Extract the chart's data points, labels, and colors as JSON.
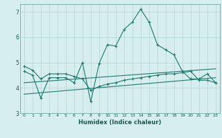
{
  "xlabel": "Humidex (Indice chaleur)",
  "background_color": "#d6eeee",
  "grid_color": "#b8d8d8",
  "line_color": "#1a7a6e",
  "xlim": [
    -0.5,
    23.5
  ],
  "ylim": [
    3.0,
    7.3
  ],
  "yticks": [
    3,
    4,
    5,
    6,
    7
  ],
  "xticks": [
    0,
    1,
    2,
    3,
    4,
    5,
    6,
    7,
    8,
    9,
    10,
    11,
    12,
    13,
    14,
    15,
    16,
    17,
    18,
    19,
    20,
    21,
    22,
    23
  ],
  "series1_x": [
    0,
    1,
    2,
    3,
    4,
    5,
    6,
    7,
    8,
    9,
    10,
    11,
    12,
    13,
    14,
    15,
    16,
    17,
    18,
    19,
    20,
    21,
    22,
    23
  ],
  "series1_y": [
    4.65,
    4.5,
    3.6,
    4.4,
    4.4,
    4.4,
    4.2,
    5.0,
    3.45,
    4.95,
    5.7,
    5.65,
    6.3,
    6.6,
    7.1,
    6.6,
    5.7,
    5.5,
    5.3,
    4.65,
    4.35,
    4.35,
    4.55,
    4.2
  ],
  "series2_x": [
    0,
    1,
    2,
    3,
    4,
    5,
    6,
    7,
    8,
    9,
    10,
    11,
    12,
    13,
    14,
    15,
    16,
    17,
    18,
    19,
    20,
    21,
    22,
    23
  ],
  "series2_y": [
    4.85,
    4.7,
    4.35,
    4.55,
    4.55,
    4.55,
    4.45,
    4.35,
    3.9,
    4.05,
    4.15,
    4.2,
    4.3,
    4.35,
    4.4,
    4.45,
    4.5,
    4.55,
    4.55,
    4.6,
    4.65,
    4.3,
    4.3,
    4.2
  ],
  "trend1_x": [
    0,
    23
  ],
  "trend1_y": [
    3.75,
    4.4
  ],
  "trend2_x": [
    0,
    23
  ],
  "trend2_y": [
    4.2,
    4.75
  ]
}
